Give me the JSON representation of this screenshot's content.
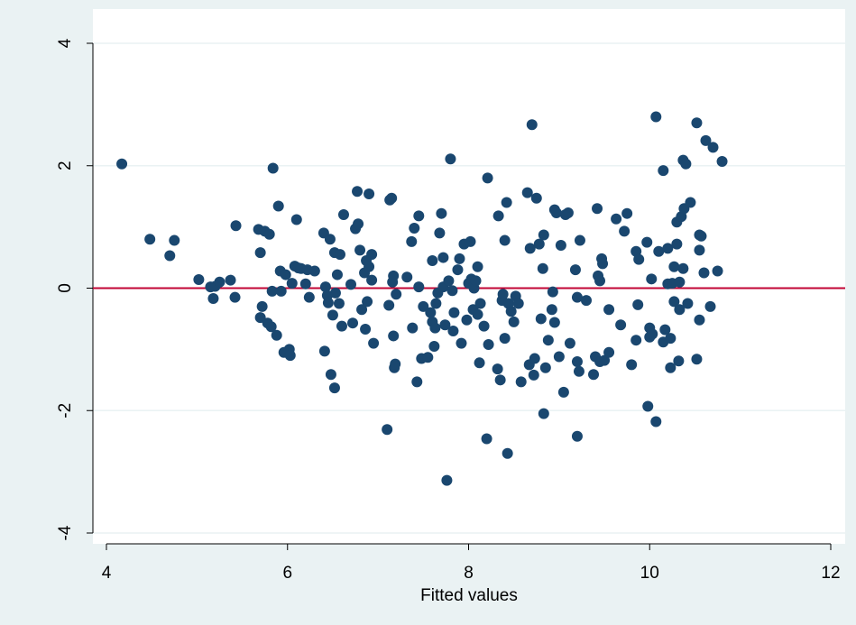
{
  "chart_data": {
    "type": "scatter",
    "x_label": "Fitted values",
    "color": "#1a476f",
    "grid": true,
    "reference_line": {
      "value": 0,
      "color": "#c10534"
    },
    "xlim": [
      4,
      12
    ],
    "xticks": [
      4,
      6,
      8,
      10,
      12
    ],
    "ylim": [
      -4,
      4
    ],
    "yticks": [
      -4,
      -2,
      0,
      2,
      4
    ],
    "x": [
      4.17,
      4.48,
      4.7,
      4.75,
      5.02,
      5.15,
      5.18,
      5.2,
      5.25,
      5.37,
      5.42,
      5.43,
      5.68,
      5.7,
      5.7,
      5.72,
      5.75,
      5.78,
      5.8,
      5.82,
      5.83,
      5.84,
      5.88,
      5.9,
      5.92,
      5.93,
      5.96,
      5.98,
      6.02,
      6.03,
      6.05,
      6.08,
      6.1,
      6.12,
      6.15,
      6.2,
      6.22,
      6.24,
      6.3,
      6.4,
      6.41,
      6.42,
      6.44,
      6.45,
      6.47,
      6.48,
      6.5,
      6.52,
      6.52,
      6.53,
      6.55,
      6.57,
      6.58,
      6.6,
      6.62,
      6.7,
      6.72,
      6.75,
      6.77,
      6.78,
      6.8,
      6.82,
      6.85,
      6.86,
      6.87,
      6.88,
      6.9,
      6.9,
      6.93,
      6.93,
      6.95,
      7.1,
      7.12,
      7.13,
      7.15,
      7.16,
      7.17,
      7.17,
      7.18,
      7.19,
      7.2,
      7.32,
      7.37,
      7.38,
      7.4,
      7.43,
      7.45,
      7.45,
      7.48,
      7.5,
      7.55,
      7.58,
      7.6,
      7.6,
      7.62,
      7.63,
      7.64,
      7.66,
      7.68,
      7.7,
      7.72,
      7.72,
      7.74,
      7.76,
      7.78,
      7.8,
      7.82,
      7.83,
      7.84,
      7.88,
      7.9,
      7.92,
      7.95,
      7.98,
      8.0,
      8.02,
      8.03,
      8.05,
      8.06,
      8.08,
      8.1,
      8.1,
      8.12,
      8.13,
      8.17,
      8.2,
      8.21,
      8.22,
      8.32,
      8.33,
      8.35,
      8.37,
      8.38,
      8.4,
      8.4,
      8.42,
      8.43,
      8.44,
      8.47,
      8.5,
      8.52,
      8.55,
      8.58,
      8.65,
      8.67,
      8.68,
      8.7,
      8.72,
      8.73,
      8.75,
      8.78,
      8.8,
      8.82,
      8.83,
      8.85,
      8.83,
      8.88,
      8.92,
      8.93,
      8.95,
      8.95,
      8.97,
      9.0,
      9.02,
      9.05,
      9.07,
      9.1,
      9.12,
      9.18,
      9.2,
      9.2,
      9.2,
      9.22,
      9.23,
      9.3,
      9.38,
      9.4,
      9.42,
      9.43,
      9.45,
      9.47,
      9.48,
      9.45,
      9.5,
      9.55,
      9.55,
      9.63,
      9.68,
      9.72,
      9.75,
      9.8,
      9.85,
      9.85,
      9.87,
      9.88,
      9.97,
      9.98,
      10.0,
      10.0,
      10.02,
      10.03,
      10.07,
      10.07,
      10.1,
      10.15,
      10.15,
      10.17,
      10.2,
      10.2,
      10.23,
      10.23,
      10.25,
      10.27,
      10.27,
      10.3,
      10.3,
      10.32,
      10.33,
      10.33,
      10.35,
      10.37,
      10.37,
      10.38,
      10.4,
      10.42,
      10.45,
      10.52,
      10.52,
      10.55,
      10.55,
      10.57,
      10.55,
      10.6,
      10.62,
      10.67,
      10.7,
      10.75,
      10.8
    ],
    "y": [
      2.03,
      0.8,
      0.53,
      0.78,
      0.14,
      0.02,
      -0.17,
      0.03,
      0.1,
      0.13,
      -0.15,
      1.02,
      0.96,
      0.58,
      -0.48,
      -0.3,
      0.93,
      -0.57,
      0.88,
      -0.63,
      -0.05,
      1.96,
      -0.77,
      1.34,
      0.28,
      -0.05,
      -1.05,
      0.22,
      -1.0,
      -1.1,
      0.08,
      0.36,
      1.12,
      0.33,
      0.32,
      0.07,
      0.3,
      -0.15,
      0.28,
      0.9,
      -1.03,
      0.02,
      -0.12,
      -0.24,
      0.8,
      -1.41,
      -0.44,
      -1.63,
      0.58,
      -0.08,
      0.22,
      -0.25,
      0.55,
      -0.62,
      1.2,
      0.06,
      -0.57,
      0.97,
      1.58,
      1.05,
      0.62,
      -0.35,
      0.25,
      -0.67,
      0.45,
      -0.22,
      1.54,
      0.35,
      0.13,
      0.55,
      -0.9,
      -2.31,
      -0.28,
      1.44,
      1.47,
      0.1,
      0.2,
      -0.78,
      -1.3,
      -1.24,
      -0.1,
      0.18,
      0.76,
      -0.65,
      0.98,
      -1.53,
      1.18,
      0.02,
      -1.15,
      -0.3,
      -1.13,
      -0.4,
      -0.55,
      0.45,
      -0.95,
      -0.65,
      -0.25,
      -0.08,
      0.9,
      1.22,
      0.5,
      0.02,
      -0.6,
      -3.14,
      0.12,
      2.11,
      -0.04,
      -0.7,
      -0.4,
      0.3,
      0.48,
      -0.9,
      0.72,
      -0.52,
      0.08,
      0.76,
      0.15,
      -0.35,
      0.0,
      0.12,
      0.35,
      -0.43,
      -1.22,
      -0.25,
      -0.62,
      -2.46,
      1.8,
      -0.92,
      -1.32,
      1.18,
      -1.5,
      -0.2,
      -0.1,
      0.78,
      -0.82,
      1.4,
      -2.7,
      -0.25,
      -0.38,
      -0.55,
      -0.13,
      -0.25,
      -1.53,
      1.56,
      -1.25,
      0.65,
      2.67,
      -1.42,
      -1.15,
      1.47,
      0.72,
      -0.5,
      0.32,
      0.87,
      -1.3,
      -2.05,
      -0.85,
      -0.35,
      -0.06,
      -0.56,
      1.28,
      1.23,
      -1.12,
      0.7,
      -1.7,
      1.2,
      1.23,
      -0.9,
      0.3,
      -0.15,
      -2.42,
      -1.2,
      -1.36,
      0.78,
      -0.2,
      -1.41,
      -1.12,
      1.3,
      0.2,
      0.12,
      0.48,
      0.4,
      -1.2,
      -1.18,
      -1.05,
      -0.35,
      1.13,
      -0.6,
      0.93,
      1.22,
      -1.25,
      0.6,
      -0.85,
      -0.27,
      0.47,
      0.75,
      -1.93,
      -0.65,
      -0.8,
      0.15,
      -0.75,
      2.8,
      -2.18,
      0.6,
      1.92,
      -0.88,
      -0.68,
      0.07,
      0.65,
      -0.82,
      -1.3,
      0.08,
      0.35,
      -0.22,
      0.72,
      1.08,
      -1.19,
      -0.35,
      0.1,
      1.17,
      2.09,
      0.32,
      1.3,
      2.03,
      -0.25,
      1.4,
      2.7,
      -1.16,
      0.62,
      0.87,
      0.85,
      -0.52,
      0.25,
      2.41,
      -0.3,
      2.3,
      0.28,
      2.07
    ]
  }
}
